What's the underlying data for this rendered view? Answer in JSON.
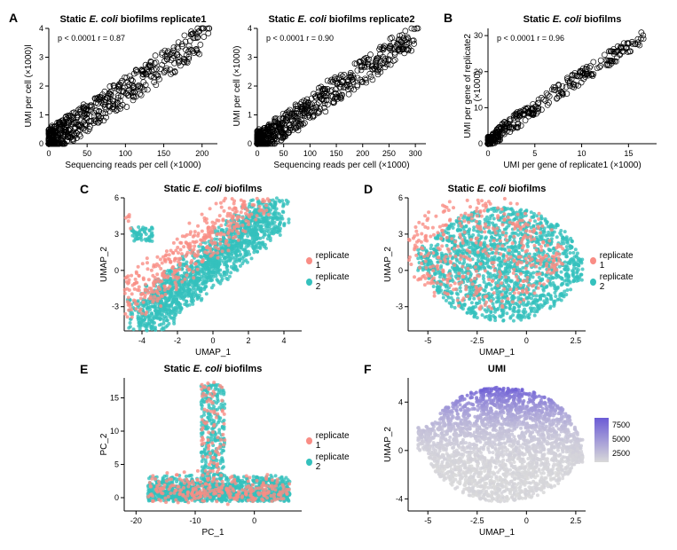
{
  "figure": {
    "background_color": "#ffffff",
    "panel_label_fontsize": 14,
    "title_fontsize": 11,
    "axis_label_fontsize": 10,
    "tick_fontsize": 9
  },
  "colors": {
    "replicate1": "#f98d85",
    "replicate2": "#35c1bd",
    "gradient_low": "#d9d9d9",
    "gradient_high": "#6b5bd6",
    "marker_stroke": "#000000",
    "axis": "#000000"
  },
  "panelA1": {
    "label": "A",
    "title_prefix": "Static ",
    "title_italic": "E. coli",
    "title_suffix": " biofilms replicate1",
    "xlabel": "Sequencing reads per cell (×1000)",
    "ylabel": "UMI per cell (×1000)l",
    "stats": "p < 0.0001    r = 0.87",
    "type": "scatter",
    "xlim": [
      0,
      220
    ],
    "ylim": [
      0,
      4
    ],
    "xticks": [
      0,
      50,
      100,
      150,
      200
    ],
    "yticks": [
      0,
      1,
      2,
      3,
      4
    ],
    "marker_stroke": "#000000",
    "marker_fill": "none",
    "marker_size": 3
  },
  "panelA2": {
    "title_prefix": "Static ",
    "title_italic": "E. coli",
    "title_suffix": " biofilms replicate2",
    "xlabel": "Sequencing reads per cell (×1000)",
    "ylabel": "UMI per cell (×1000)",
    "stats": "p < 0.0001    r = 0.90",
    "type": "scatter",
    "xlim": [
      0,
      320
    ],
    "ylim": [
      0,
      4
    ],
    "xticks": [
      0,
      50,
      100,
      150,
      200,
      250,
      300
    ],
    "yticks": [
      0,
      1,
      2,
      3,
      4
    ],
    "marker_stroke": "#000000",
    "marker_fill": "none",
    "marker_size": 3
  },
  "panelB": {
    "label": "B",
    "title_prefix": "Static ",
    "title_italic": "E. coli",
    "title_suffix": " biofilms",
    "xlabel": "UMI per gene of replicate1 (×1000)",
    "ylabel": "UMI per gene of replicate2 (×1000)",
    "stats": "p < 0.0001    r = 0.96",
    "type": "scatter",
    "xlim": [
      0,
      18
    ],
    "ylim": [
      0,
      32
    ],
    "xticks": [
      0,
      5,
      10,
      15
    ],
    "yticks": [
      0,
      10,
      20,
      30
    ],
    "marker_stroke": "#000000",
    "marker_fill": "none",
    "marker_size": 3
  },
  "panelC": {
    "label": "C",
    "title_prefix": "Static ",
    "title_italic": "E. coli",
    "title_suffix": " biofilms",
    "xlabel": "UMAP_1",
    "ylabel": "UMAP_2",
    "type": "scatter-2color",
    "xlim": [
      -5,
      5
    ],
    "ylim": [
      -5,
      6
    ],
    "xticks": [
      -4,
      -2,
      0,
      2,
      4
    ],
    "yticks": [
      -3,
      0,
      3,
      6
    ],
    "legend": [
      "replicate 1",
      "replicate 2"
    ],
    "marker_size": 2
  },
  "panelD": {
    "label": "D",
    "title_prefix": "Static ",
    "title_italic": "E. coli",
    "title_suffix": " biofilms",
    "xlabel": "UMAP_1",
    "ylabel": "UMAP_2",
    "type": "scatter-2color",
    "xlim": [
      -6,
      3
    ],
    "ylim": [
      -5,
      6
    ],
    "xticks": [
      -5.0,
      -2.5,
      0.0,
      2.5
    ],
    "yticks": [
      -3,
      0,
      3,
      6
    ],
    "legend": [
      "replicate 1",
      "replicate 2"
    ],
    "marker_size": 2
  },
  "panelE": {
    "label": "E",
    "title_prefix": "Static ",
    "title_italic": "E. coli",
    "title_suffix": " biofilms",
    "xlabel": "PC_1",
    "ylabel": "PC_2",
    "type": "scatter-2color",
    "xlim": [
      -22,
      8
    ],
    "ylim": [
      -2,
      18
    ],
    "xticks": [
      -20,
      -10,
      0
    ],
    "yticks": [
      0,
      5,
      10,
      15
    ],
    "legend": [
      "replicate 1",
      "replicate 2"
    ],
    "marker_size": 2
  },
  "panelF": {
    "label": "F",
    "title": "UMI",
    "xlabel": "UMAP_1",
    "ylabel": "UMAP_2",
    "type": "scatter-gradient",
    "xlim": [
      -6,
      3
    ],
    "ylim": [
      -5,
      6
    ],
    "xticks": [
      -5.0,
      -2.5,
      0.0,
      2.5
    ],
    "yticks": [
      -4,
      0,
      4
    ],
    "gradient_values": [
      2500,
      5000,
      7500
    ],
    "marker_size": 2
  }
}
